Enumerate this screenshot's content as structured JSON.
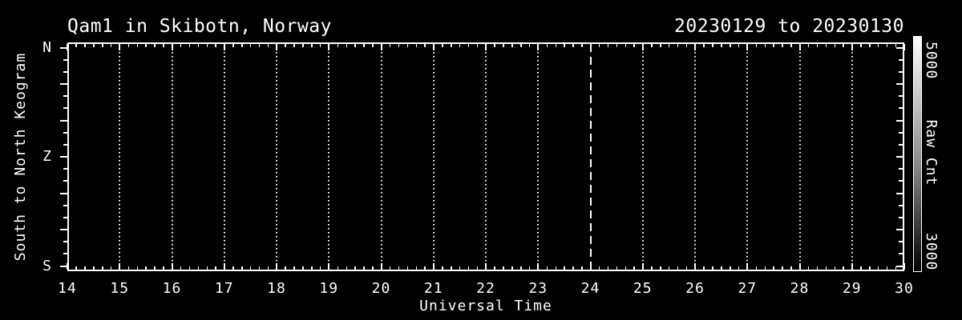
{
  "page": {
    "background_color": "#000000",
    "foreground_color": "#ffffff"
  },
  "header": {
    "title": "Qam1 in Skibotn, Norway",
    "date_range": "20230129 to 20230130"
  },
  "axes": {
    "xlabel": "Universal Time",
    "ylabel": "South to North Keogram",
    "x_tick_labels": [
      "14",
      "15",
      "16",
      "17",
      "18",
      "19",
      "20",
      "21",
      "22",
      "23",
      "24",
      "25",
      "26",
      "27",
      "28",
      "29",
      "30"
    ],
    "y_tick_labels": [
      "N",
      "Z",
      "S"
    ]
  },
  "colorbar": {
    "label": "Raw Cnt",
    "max_label": "5000",
    "min_label": "3000",
    "gradient_top_color": "#ffffff",
    "gradient_bottom_color": "#000000"
  },
  "chart_data": {
    "type": "heatmap",
    "title": "Qam1 in Skibotn, Norway",
    "subtitle": "20230129 to 20230130",
    "xlabel": "Universal Time",
    "ylabel": "South to North Keogram",
    "x_range": [
      14,
      30
    ],
    "x_major_tick_interval_hours": 1,
    "x_minor_ticks_per_hour": 6,
    "y_tick_labels": [
      "N",
      "Z",
      "S"
    ],
    "y_minor_intervals": 18,
    "y_major_every_nth_minor": 3,
    "grid": "vertical dotted gridline at every hour 15-29; vertical dashed line at hour 24 (midnight boundary)",
    "midnight_line_x": 24,
    "legend_position": "right colorbar",
    "colorbar": {
      "label": "Raw Cnt",
      "min": 3000,
      "max": 5000,
      "colormap": "grayscale, white = max (top) to black = min (bottom)"
    },
    "values": [],
    "note": "keogram image area is uniformly black - no data rendered between 14 UT and 30 UT"
  }
}
